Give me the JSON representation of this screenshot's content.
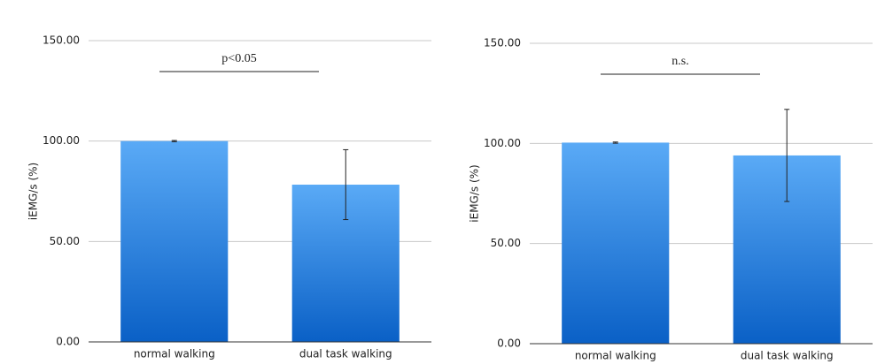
{
  "chart_data": [
    {
      "type": "bar",
      "y_label": "iEMG/s (%)",
      "annotation": "p<0.05",
      "categories": [
        "normal walking",
        "dual task walking"
      ],
      "values": [
        100,
        78.3
      ],
      "errors": [
        0.3,
        17.4
      ],
      "ylim": [
        0,
        150
      ],
      "yticks": [
        {
          "value": 0,
          "label": "0.00"
        },
        {
          "value": 50,
          "label": "50.00"
        },
        {
          "value": 100,
          "label": "100.00"
        },
        {
          "value": 150,
          "label": "150.00"
        }
      ],
      "grid": true
    },
    {
      "type": "bar",
      "y_label": "iEMG/s (%)",
      "annotation": "n.s.",
      "categories": [
        "normal walking",
        "dual task walking"
      ],
      "values": [
        100.4,
        94
      ],
      "errors": [
        0.3,
        23
      ],
      "ylim": [
        0,
        150
      ],
      "yticks": [
        {
          "value": 0,
          "label": "0.00"
        },
        {
          "value": 50,
          "label": "50.00"
        },
        {
          "value": 100,
          "label": "100.00"
        },
        {
          "value": 150,
          "label": "150.00"
        }
      ],
      "grid": true
    }
  ]
}
